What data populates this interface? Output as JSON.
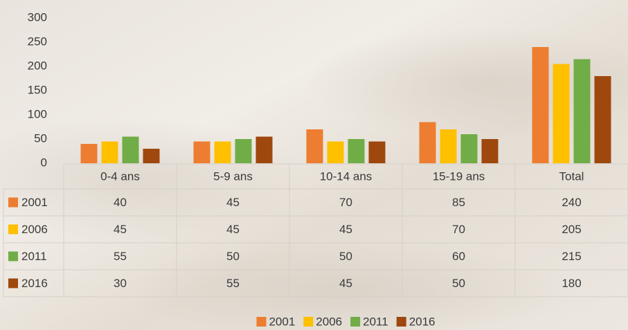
{
  "chart_data": {
    "type": "bar",
    "categories": [
      "0-4 ans",
      "5-9 ans",
      "10-14 ans",
      "15-19 ans",
      "Total"
    ],
    "series": [
      {
        "name": "2001",
        "color": "#ED7D31",
        "values": [
          40,
          45,
          70,
          85,
          240
        ]
      },
      {
        "name": "2006",
        "color": "#FFC000",
        "values": [
          45,
          45,
          45,
          70,
          205
        ]
      },
      {
        "name": "2011",
        "color": "#70AD47",
        "values": [
          55,
          50,
          50,
          60,
          215
        ]
      },
      {
        "name": "2016",
        "color": "#9E480E",
        "values": [
          30,
          55,
          45,
          50,
          180
        ]
      }
    ],
    "ylim": [
      0,
      300
    ],
    "yticks": [
      0,
      50,
      100,
      150,
      200,
      250,
      300
    ],
    "grid": false,
    "data_table": true,
    "legend": "bottom"
  }
}
